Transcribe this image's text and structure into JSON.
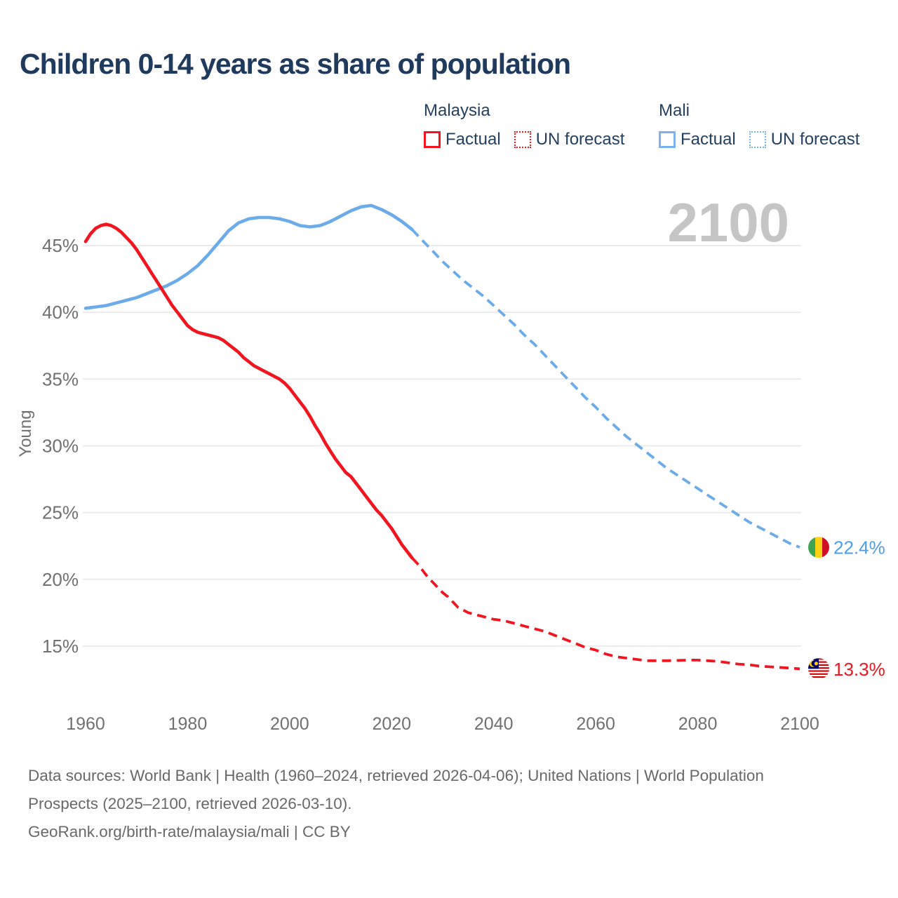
{
  "title": "Children 0-14 years as share of population",
  "legend": {
    "malaysia": {
      "label": "Malaysia",
      "factual": "Factual",
      "forecast": "UN forecast"
    },
    "mali": {
      "label": "Mali",
      "factual": "Factual",
      "forecast": "UN forecast"
    }
  },
  "footer": {
    "sources": "Data sources: World Bank | Health (1960–2024, retrieved 2026-04-06); United Nations | World Population Prospects (2025–2100, retrieved 2026-03-10).",
    "attribution": "GeoRank.org/birth-rate/malaysia/mali | CC BY"
  },
  "colors": {
    "malaysia_red": "#f0151f",
    "mali_blue": "#6babe9",
    "blue_value_label": "#4f9de4",
    "red_value_label": "#f0151f",
    "title_navy": "#1f3a5c",
    "axis_gray": "#707070",
    "grid_gray": "#ebebeb",
    "watermark_gray": "#c5c5c5",
    "footer_gray": "#686868"
  },
  "chart_data": {
    "type": "line",
    "title": "Children 0-14 years as share of population",
    "xlabel": "",
    "ylabel": "Young",
    "grid": true,
    "legend_position": "top",
    "annotation": "2100",
    "x_ticks": [
      1960,
      1980,
      2000,
      2020,
      2040,
      2060,
      2080,
      2100
    ],
    "y_ticks": [
      15,
      20,
      25,
      30,
      35,
      40,
      45
    ],
    "y_tick_suffix": "%",
    "xlim": [
      1960,
      2100
    ],
    "ylim": [
      13,
      48.5
    ],
    "series": [
      {
        "id": "mali-factual",
        "name": "Mali Factual",
        "style": "solid",
        "color": "#6babe9",
        "points": [
          [
            1960,
            40.3
          ],
          [
            1962,
            40.4
          ],
          [
            1964,
            40.5
          ],
          [
            1966,
            40.7
          ],
          [
            1968,
            40.9
          ],
          [
            1970,
            41.1
          ],
          [
            1972,
            41.4
          ],
          [
            1974,
            41.7
          ],
          [
            1976,
            42.0
          ],
          [
            1978,
            42.4
          ],
          [
            1980,
            42.9
          ],
          [
            1982,
            43.5
          ],
          [
            1984,
            44.3
          ],
          [
            1986,
            45.2
          ],
          [
            1988,
            46.1
          ],
          [
            1990,
            46.7
          ],
          [
            1992,
            47.0
          ],
          [
            1994,
            47.1
          ],
          [
            1996,
            47.1
          ],
          [
            1998,
            47.0
          ],
          [
            2000,
            46.8
          ],
          [
            2002,
            46.5
          ],
          [
            2004,
            46.4
          ],
          [
            2006,
            46.5
          ],
          [
            2008,
            46.8
          ],
          [
            2010,
            47.2
          ],
          [
            2012,
            47.6
          ],
          [
            2014,
            47.9
          ],
          [
            2016,
            48.0
          ],
          [
            2018,
            47.7
          ],
          [
            2020,
            47.3
          ],
          [
            2022,
            46.8
          ],
          [
            2024,
            46.2
          ]
        ]
      },
      {
        "id": "mali-forecast",
        "name": "Mali UN forecast",
        "style": "dashed",
        "color": "#6babe9",
        "points": [
          [
            2024,
            46.2
          ],
          [
            2025,
            45.8
          ],
          [
            2026,
            45.4
          ],
          [
            2028,
            44.6
          ],
          [
            2030,
            43.8
          ],
          [
            2032,
            43.1
          ],
          [
            2034,
            42.4
          ],
          [
            2036,
            41.8
          ],
          [
            2038,
            41.2
          ],
          [
            2040,
            40.5
          ],
          [
            2042,
            39.8
          ],
          [
            2044,
            39.1
          ],
          [
            2046,
            38.3
          ],
          [
            2048,
            37.6
          ],
          [
            2050,
            36.8
          ],
          [
            2052,
            36.0
          ],
          [
            2054,
            35.2
          ],
          [
            2056,
            34.4
          ],
          [
            2058,
            33.6
          ],
          [
            2060,
            32.9
          ],
          [
            2062,
            32.1
          ],
          [
            2064,
            31.4
          ],
          [
            2066,
            30.7
          ],
          [
            2068,
            30.1
          ],
          [
            2070,
            29.5
          ],
          [
            2072,
            28.9
          ],
          [
            2074,
            28.3
          ],
          [
            2076,
            27.8
          ],
          [
            2078,
            27.3
          ],
          [
            2080,
            26.8
          ],
          [
            2082,
            26.3
          ],
          [
            2084,
            25.8
          ],
          [
            2086,
            25.3
          ],
          [
            2088,
            24.8
          ],
          [
            2090,
            24.3
          ],
          [
            2092,
            23.9
          ],
          [
            2094,
            23.5
          ],
          [
            2096,
            23.1
          ],
          [
            2098,
            22.7
          ],
          [
            2100,
            22.4
          ]
        ]
      },
      {
        "id": "malaysia-factual",
        "name": "Malaysia Factual",
        "style": "solid",
        "color": "#f0151f",
        "points": [
          [
            1960,
            45.3
          ],
          [
            1961,
            45.9
          ],
          [
            1962,
            46.3
          ],
          [
            1963,
            46.5
          ],
          [
            1964,
            46.6
          ],
          [
            1965,
            46.5
          ],
          [
            1966,
            46.3
          ],
          [
            1967,
            46.0
          ],
          [
            1968,
            45.6
          ],
          [
            1969,
            45.2
          ],
          [
            1970,
            44.7
          ],
          [
            1971,
            44.1
          ],
          [
            1972,
            43.5
          ],
          [
            1973,
            42.9
          ],
          [
            1974,
            42.3
          ],
          [
            1975,
            41.7
          ],
          [
            1976,
            41.1
          ],
          [
            1977,
            40.5
          ],
          [
            1978,
            40.0
          ],
          [
            1979,
            39.5
          ],
          [
            1980,
            39.0
          ],
          [
            1981,
            38.7
          ],
          [
            1982,
            38.5
          ],
          [
            1983,
            38.4
          ],
          [
            1984,
            38.3
          ],
          [
            1985,
            38.2
          ],
          [
            1986,
            38.1
          ],
          [
            1987,
            37.9
          ],
          [
            1988,
            37.6
          ],
          [
            1989,
            37.3
          ],
          [
            1990,
            37.0
          ],
          [
            1991,
            36.6
          ],
          [
            1992,
            36.3
          ],
          [
            1993,
            36.0
          ],
          [
            1994,
            35.8
          ],
          [
            1995,
            35.6
          ],
          [
            1996,
            35.4
          ],
          [
            1997,
            35.2
          ],
          [
            1998,
            35.0
          ],
          [
            1999,
            34.7
          ],
          [
            2000,
            34.3
          ],
          [
            2001,
            33.8
          ],
          [
            2002,
            33.3
          ],
          [
            2003,
            32.8
          ],
          [
            2004,
            32.2
          ],
          [
            2005,
            31.5
          ],
          [
            2006,
            30.9
          ],
          [
            2007,
            30.2
          ],
          [
            2008,
            29.6
          ],
          [
            2009,
            29.0
          ],
          [
            2010,
            28.5
          ],
          [
            2011,
            28.0
          ],
          [
            2012,
            27.7
          ],
          [
            2013,
            27.2
          ],
          [
            2014,
            26.7
          ],
          [
            2015,
            26.2
          ],
          [
            2016,
            25.7
          ],
          [
            2017,
            25.2
          ],
          [
            2018,
            24.8
          ],
          [
            2019,
            24.3
          ],
          [
            2020,
            23.8
          ],
          [
            2021,
            23.2
          ],
          [
            2022,
            22.6
          ],
          [
            2023,
            22.1
          ],
          [
            2024,
            21.6
          ]
        ]
      },
      {
        "id": "malaysia-forecast",
        "name": "Malaysia UN forecast",
        "style": "dashed",
        "color": "#f0151f",
        "points": [
          [
            2024,
            21.6
          ],
          [
            2025,
            21.2
          ],
          [
            2026,
            20.7
          ],
          [
            2027,
            20.2
          ],
          [
            2028,
            19.8
          ],
          [
            2029,
            19.4
          ],
          [
            2030,
            19.0
          ],
          [
            2031,
            18.7
          ],
          [
            2032,
            18.3
          ],
          [
            2033,
            17.9
          ],
          [
            2034,
            17.7
          ],
          [
            2035,
            17.5
          ],
          [
            2036,
            17.4
          ],
          [
            2037,
            17.3
          ],
          [
            2038,
            17.2
          ],
          [
            2040,
            17.0
          ],
          [
            2042,
            16.9
          ],
          [
            2044,
            16.7
          ],
          [
            2046,
            16.5
          ],
          [
            2048,
            16.3
          ],
          [
            2050,
            16.1
          ],
          [
            2052,
            15.8
          ],
          [
            2054,
            15.5
          ],
          [
            2056,
            15.2
          ],
          [
            2058,
            14.9
          ],
          [
            2060,
            14.7
          ],
          [
            2062,
            14.4
          ],
          [
            2064,
            14.2
          ],
          [
            2066,
            14.1
          ],
          [
            2068,
            14.0
          ],
          [
            2070,
            13.9
          ],
          [
            2074,
            13.9
          ],
          [
            2078,
            13.95
          ],
          [
            2080,
            13.95
          ],
          [
            2082,
            13.9
          ],
          [
            2084,
            13.85
          ],
          [
            2086,
            13.75
          ],
          [
            2088,
            13.65
          ],
          [
            2090,
            13.6
          ],
          [
            2092,
            13.5
          ],
          [
            2094,
            13.45
          ],
          [
            2096,
            13.4
          ],
          [
            2098,
            13.35
          ],
          [
            2100,
            13.3
          ]
        ]
      }
    ],
    "end_labels": [
      {
        "series": "Mali",
        "label": "22.4%",
        "flag": "mali",
        "color": "#4f9de4",
        "year": 2100,
        "value": 22.4
      },
      {
        "series": "Malaysia",
        "label": "13.3%",
        "flag": "malaysia",
        "color": "#f0151f",
        "year": 2100,
        "value": 13.3
      }
    ]
  }
}
